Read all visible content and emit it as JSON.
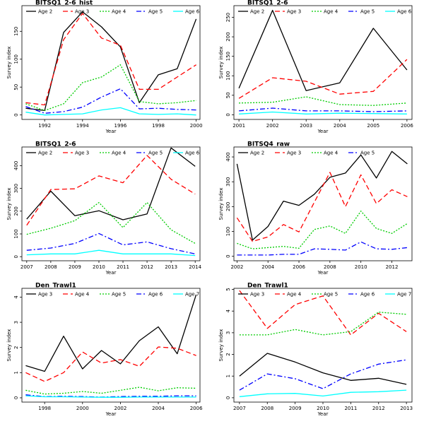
{
  "chart_data": [
    {
      "type": "line",
      "title": "BITSQ1_2-6_hist",
      "xlabel": "Year",
      "ylabel": "Survey index",
      "xlim": [
        1990.8,
        2000.2
      ],
      "ylim": [
        -8,
        196
      ],
      "xticks": [
        1992,
        1994,
        1996,
        1998,
        2000
      ],
      "yticks": [
        0,
        50,
        100,
        150
      ],
      "x": [
        1991,
        1992,
        1993,
        1994,
        1995,
        1996,
        1997,
        1998,
        1999,
        2000
      ],
      "series": [
        {
          "name": "Age 2",
          "color": "#000000",
          "dash": "",
          "values": [
            12,
            8,
            148,
            185,
            158,
            122,
            22,
            72,
            83,
            172
          ]
        },
        {
          "name": "Age 3",
          "color": "#ff0000",
          "dash": "7 4",
          "values": [
            22,
            18,
            135,
            182,
            138,
            125,
            46,
            46,
            68,
            90
          ]
        },
        {
          "name": "Age 4",
          "color": "#00cc00",
          "dash": "2 2",
          "values": [
            20,
            8,
            20,
            58,
            68,
            90,
            24,
            20,
            22,
            26
          ]
        },
        {
          "name": "Age 5",
          "color": "#0000ff",
          "dash": "7 3 2 3",
          "values": [
            15,
            3,
            6,
            14,
            32,
            47,
            11,
            12,
            10,
            9
          ]
        },
        {
          "name": "Age 6",
          "color": "#00ffff",
          "dash": "",
          "values": [
            5,
            0,
            1,
            2,
            9,
            13,
            2,
            1,
            2,
            0
          ]
        }
      ],
      "legend": "top"
    },
    {
      "type": "line",
      "title": "BITSQ1_2-6",
      "xlabel": "Year",
      "ylabel": "Survey index",
      "xlim": [
        2000.85,
        2006.15
      ],
      "ylim": [
        -12,
        280
      ],
      "xticks": [
        2001,
        2002,
        2003,
        2004,
        2005,
        2006
      ],
      "yticks": [
        0,
        50,
        100,
        150,
        200,
        250
      ],
      "x": [
        2001,
        2002,
        2003,
        2004,
        2005,
        2006
      ],
      "series": [
        {
          "name": "Age 2",
          "color": "#000000",
          "dash": "",
          "values": [
            68,
            268,
            62,
            82,
            222,
            115
          ]
        },
        {
          "name": "Age 3",
          "color": "#ff0000",
          "dash": "7 4",
          "values": [
            42,
            95,
            86,
            53,
            60,
            142
          ]
        },
        {
          "name": "Age 4",
          "color": "#00cc00",
          "dash": "2 2",
          "values": [
            30,
            32,
            46,
            26,
            24,
            30
          ]
        },
        {
          "name": "Age 5",
          "color": "#0000ff",
          "dash": "7 3 2 3",
          "values": [
            10,
            17,
            10,
            10,
            8,
            10
          ]
        },
        {
          "name": "Age 6",
          "color": "#00ffff",
          "dash": "",
          "values": [
            2,
            7,
            2,
            4,
            3,
            2
          ]
        }
      ],
      "legend": "top"
    },
    {
      "type": "line",
      "title": "BITSQ1_2-6",
      "xlabel": "Year",
      "ylabel": "Survey index",
      "xlim": [
        2006.8,
        2014.2
      ],
      "ylim": [
        -18,
        482
      ],
      "xticks": [
        2007,
        2008,
        2009,
        2010,
        2011,
        2012,
        2013,
        2014
      ],
      "yticks": [
        0,
        100,
        200,
        300,
        400
      ],
      "x": [
        2007,
        2008,
        2009,
        2010,
        2011,
        2012,
        2013,
        2014
      ],
      "series": [
        {
          "name": "Age 2",
          "color": "#000000",
          "dash": "",
          "values": [
            165,
            288,
            180,
            202,
            162,
            188,
            478,
            397
          ]
        },
        {
          "name": "Age 3",
          "color": "#ff0000",
          "dash": "7 4",
          "values": [
            138,
            295,
            298,
            355,
            325,
            445,
            340,
            275
          ]
        },
        {
          "name": "Age 4",
          "color": "#00cc00",
          "dash": "2 2",
          "values": [
            98,
            125,
            158,
            238,
            128,
            238,
            118,
            58
          ]
        },
        {
          "name": "Age 5",
          "color": "#0000ff",
          "dash": "7 3 2 3",
          "values": [
            28,
            38,
            58,
            102,
            52,
            65,
            35,
            12
          ]
        },
        {
          "name": "Age 6",
          "color": "#00ffff",
          "dash": "",
          "values": [
            8,
            12,
            12,
            28,
            12,
            12,
            12,
            5
          ]
        }
      ],
      "legend": "top"
    },
    {
      "type": "line",
      "title": "BITSQ4_raw",
      "xlabel": "Year",
      "ylabel": "Survey index",
      "xlim": [
        2001.8,
        2013.3
      ],
      "ylim": [
        -18,
        440
      ],
      "xticks": [
        2002,
        2004,
        2006,
        2008,
        2010,
        2012
      ],
      "yticks": [
        0,
        100,
        200,
        300,
        400
      ],
      "x": [
        2002,
        2003,
        2004,
        2005,
        2006,
        2007,
        2008,
        2009,
        2010,
        2011,
        2012,
        2013
      ],
      "series": [
        {
          "name": "Age 2",
          "color": "#000000",
          "dash": "",
          "values": [
            372,
            65,
            120,
            222,
            205,
            250,
            318,
            335,
            408,
            315,
            422,
            372
          ]
        },
        {
          "name": "Age 3",
          "color": "#ff0000",
          "dash": "7 4",
          "values": [
            155,
            60,
            78,
            128,
            98,
            218,
            338,
            200,
            328,
            212,
            268,
            240
          ]
        },
        {
          "name": "Age 4",
          "color": "#00cc00",
          "dash": "2 2",
          "values": [
            52,
            30,
            35,
            40,
            32,
            108,
            122,
            92,
            182,
            112,
            92,
            132
          ]
        },
        {
          "name": "Age 5",
          "color": "#0000ff",
          "dash": "7 3 2 3",
          "values": [
            5,
            5,
            5,
            8,
            8,
            30,
            28,
            25,
            58,
            30,
            28,
            35
          ]
        }
      ],
      "legend": "top"
    },
    {
      "type": "line",
      "title": "Den_Trawl1",
      "xlabel": "Year",
      "ylabel": "Survey index",
      "xlim": [
        1996.8,
        2006.2
      ],
      "ylim": [
        -0.17,
        4.35
      ],
      "xticks": [
        1998,
        2000,
        2002,
        2004,
        2006
      ],
      "yticks": [
        0,
        1,
        2,
        3,
        4
      ],
      "x": [
        1997,
        1998,
        1999,
        2000,
        2001,
        2002,
        2003,
        2004,
        2005,
        2006
      ],
      "series": [
        {
          "name": "Age 3",
          "color": "#000000",
          "dash": "",
          "values": [
            1.28,
            1.05,
            2.45,
            1.15,
            1.88,
            1.35,
            2.27,
            2.82,
            1.75,
            4.1
          ]
        },
        {
          "name": "Age 4",
          "color": "#ff0000",
          "dash": "7 4",
          "values": [
            1.0,
            0.65,
            1.0,
            1.82,
            1.38,
            1.52,
            1.25,
            2.02,
            1.97,
            1.68
          ]
        },
        {
          "name": "Age 5",
          "color": "#00cc00",
          "dash": "2 2",
          "values": [
            0.3,
            0.15,
            0.18,
            0.25,
            0.18,
            0.3,
            0.42,
            0.28,
            0.4,
            0.38
          ]
        },
        {
          "name": "Age 6",
          "color": "#0000ff",
          "dash": "7 3 2 3",
          "values": [
            0.12,
            0.05,
            0.06,
            0.05,
            0.03,
            0.05,
            0.06,
            0.06,
            0.08,
            0.08
          ]
        },
        {
          "name": "Age 7",
          "color": "#00ffff",
          "dash": "",
          "values": [
            0.08,
            0.04,
            0.04,
            0.03,
            0.02,
            0.02,
            0.03,
            0.03,
            0.03,
            0.03
          ]
        }
      ],
      "legend": "top"
    },
    {
      "type": "line",
      "title": "Den_Trawl1",
      "xlabel": "Year",
      "ylabel": "Survey index",
      "xlim": [
        2006.8,
        2013.2
      ],
      "ylim": [
        -0.2,
        5.05
      ],
      "xticks": [
        2007,
        2008,
        2009,
        2010,
        2011,
        2012,
        2013
      ],
      "yticks": [
        0,
        1,
        2,
        3,
        4,
        5
      ],
      "x": [
        2007,
        2008,
        2009,
        2010,
        2011,
        2012,
        2013
      ],
      "series": [
        {
          "name": "Age 3",
          "color": "#000000",
          "dash": "",
          "values": [
            1.0,
            2.05,
            1.65,
            1.15,
            0.8,
            0.9,
            0.62
          ]
        },
        {
          "name": "Age 4",
          "color": "#ff0000",
          "dash": "7 4",
          "values": [
            4.95,
            3.2,
            4.3,
            4.7,
            2.9,
            3.9,
            3.05
          ]
        },
        {
          "name": "Age 5",
          "color": "#00cc00",
          "dash": "2 2",
          "values": [
            2.9,
            2.9,
            3.15,
            2.9,
            3.05,
            3.95,
            3.85
          ]
        },
        {
          "name": "Age 6",
          "color": "#0000ff",
          "dash": "7 3 2 3",
          "values": [
            0.35,
            1.1,
            0.88,
            0.42,
            1.1,
            1.55,
            1.75
          ]
        },
        {
          "name": "Age 7",
          "color": "#00ffff",
          "dash": "",
          "values": [
            0.05,
            0.18,
            0.2,
            0.08,
            0.25,
            0.28,
            0.35
          ]
        }
      ],
      "legend": "top"
    }
  ]
}
